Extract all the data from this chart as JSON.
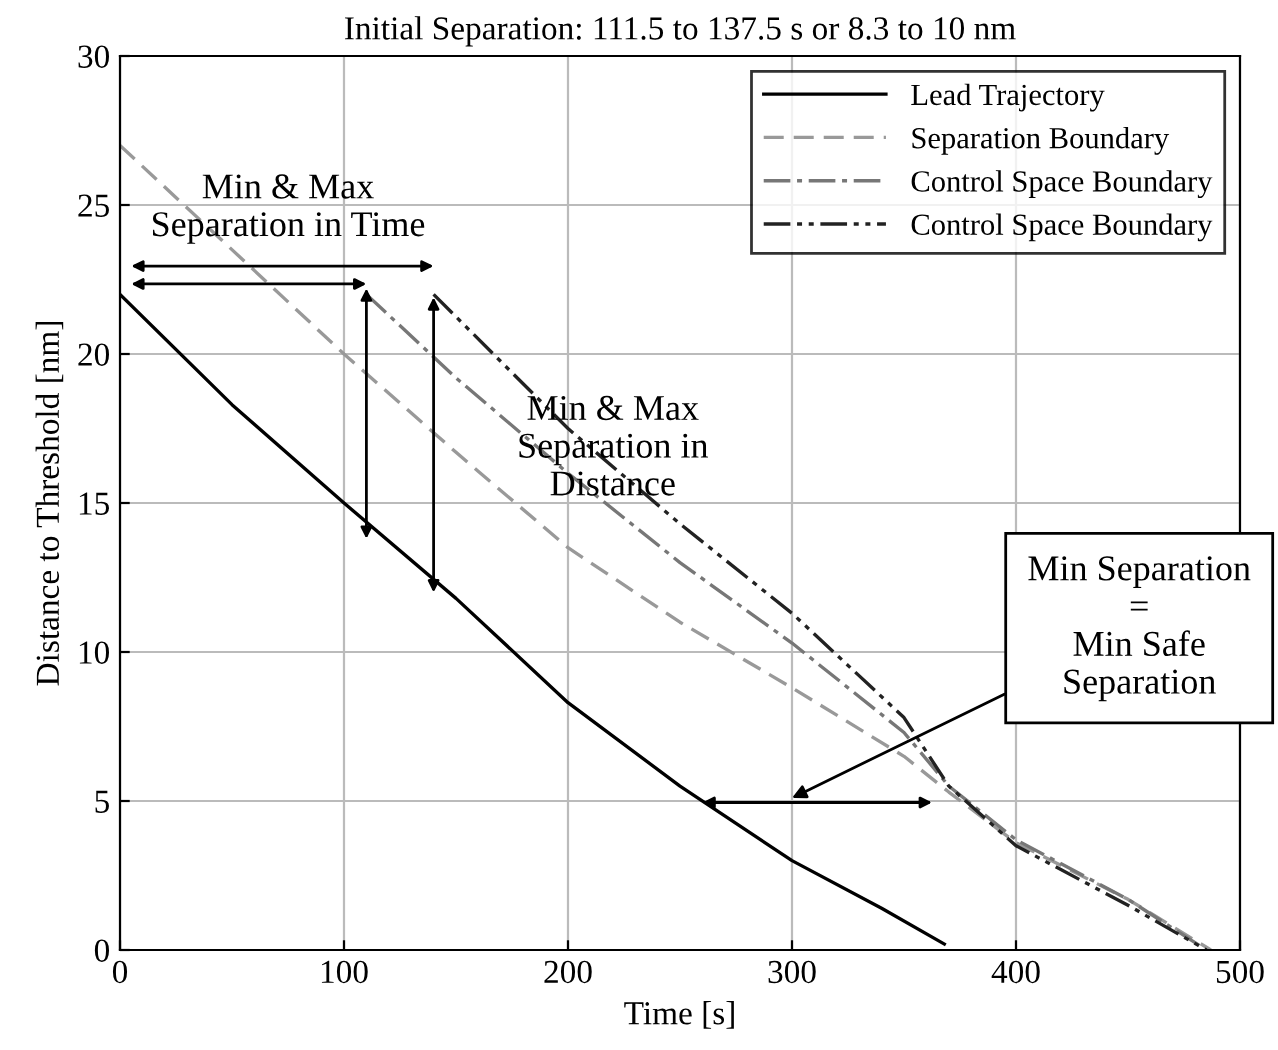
{
  "chart_data": {
    "type": "line",
    "title": "Initial Separation: 111.5 to 137.5 s or 8.3 to 10 nm",
    "xlabel": "Time [s]",
    "ylabel": "Distance to Threshold [nm]",
    "xlim": [
      0,
      500
    ],
    "ylim": [
      0,
      30
    ],
    "xticks": [
      0,
      100,
      200,
      300,
      400,
      500
    ],
    "yticks": [
      0,
      5,
      10,
      15,
      20,
      25,
      30
    ],
    "grid": true,
    "legend": "top right",
    "series": [
      {
        "name": "Lead Trajectory",
        "color": "#000000",
        "line_style": "solid",
        "x": [
          0,
          50,
          100,
          150,
          200,
          250,
          300,
          340,
          368
        ],
        "values": [
          22,
          18.3,
          15,
          11.8,
          8.3,
          5.5,
          3.0,
          1.4,
          0.2
        ]
      },
      {
        "name": "Separation Boundary",
        "color": "#999999",
        "line_style": "dashed",
        "x": [
          0,
          100,
          150,
          200,
          250,
          300,
          350,
          370,
          400,
          450,
          487
        ],
        "values": [
          27,
          20,
          16.7,
          13.5,
          11,
          8.8,
          6.5,
          5.3,
          3.6,
          1.7,
          0
        ]
      },
      {
        "name": "Control Space Boundary",
        "color": "#777777",
        "line_style": "dashdot",
        "x": [
          110,
          150,
          200,
          250,
          300,
          350,
          370,
          400,
          450,
          485
        ],
        "values": [
          22,
          19.2,
          16,
          13,
          10.3,
          7.3,
          5.5,
          3.7,
          1.7,
          0
        ]
      },
      {
        "name": "Control Space Boundary",
        "color": "#222222",
        "line_style": "dashdotdot",
        "x": [
          140,
          200,
          250,
          300,
          350,
          370,
          400,
          450,
          485
        ],
        "values": [
          22,
          17.5,
          14.3,
          11.3,
          7.8,
          5.5,
          3.5,
          1.5,
          0
        ]
      }
    ],
    "annotations": [
      "Min & Max\nSeparation in Time",
      "Min & Max\nSeparation in\nDistance",
      "Min Separation\n=\nMin Safe\nSeparation"
    ]
  }
}
